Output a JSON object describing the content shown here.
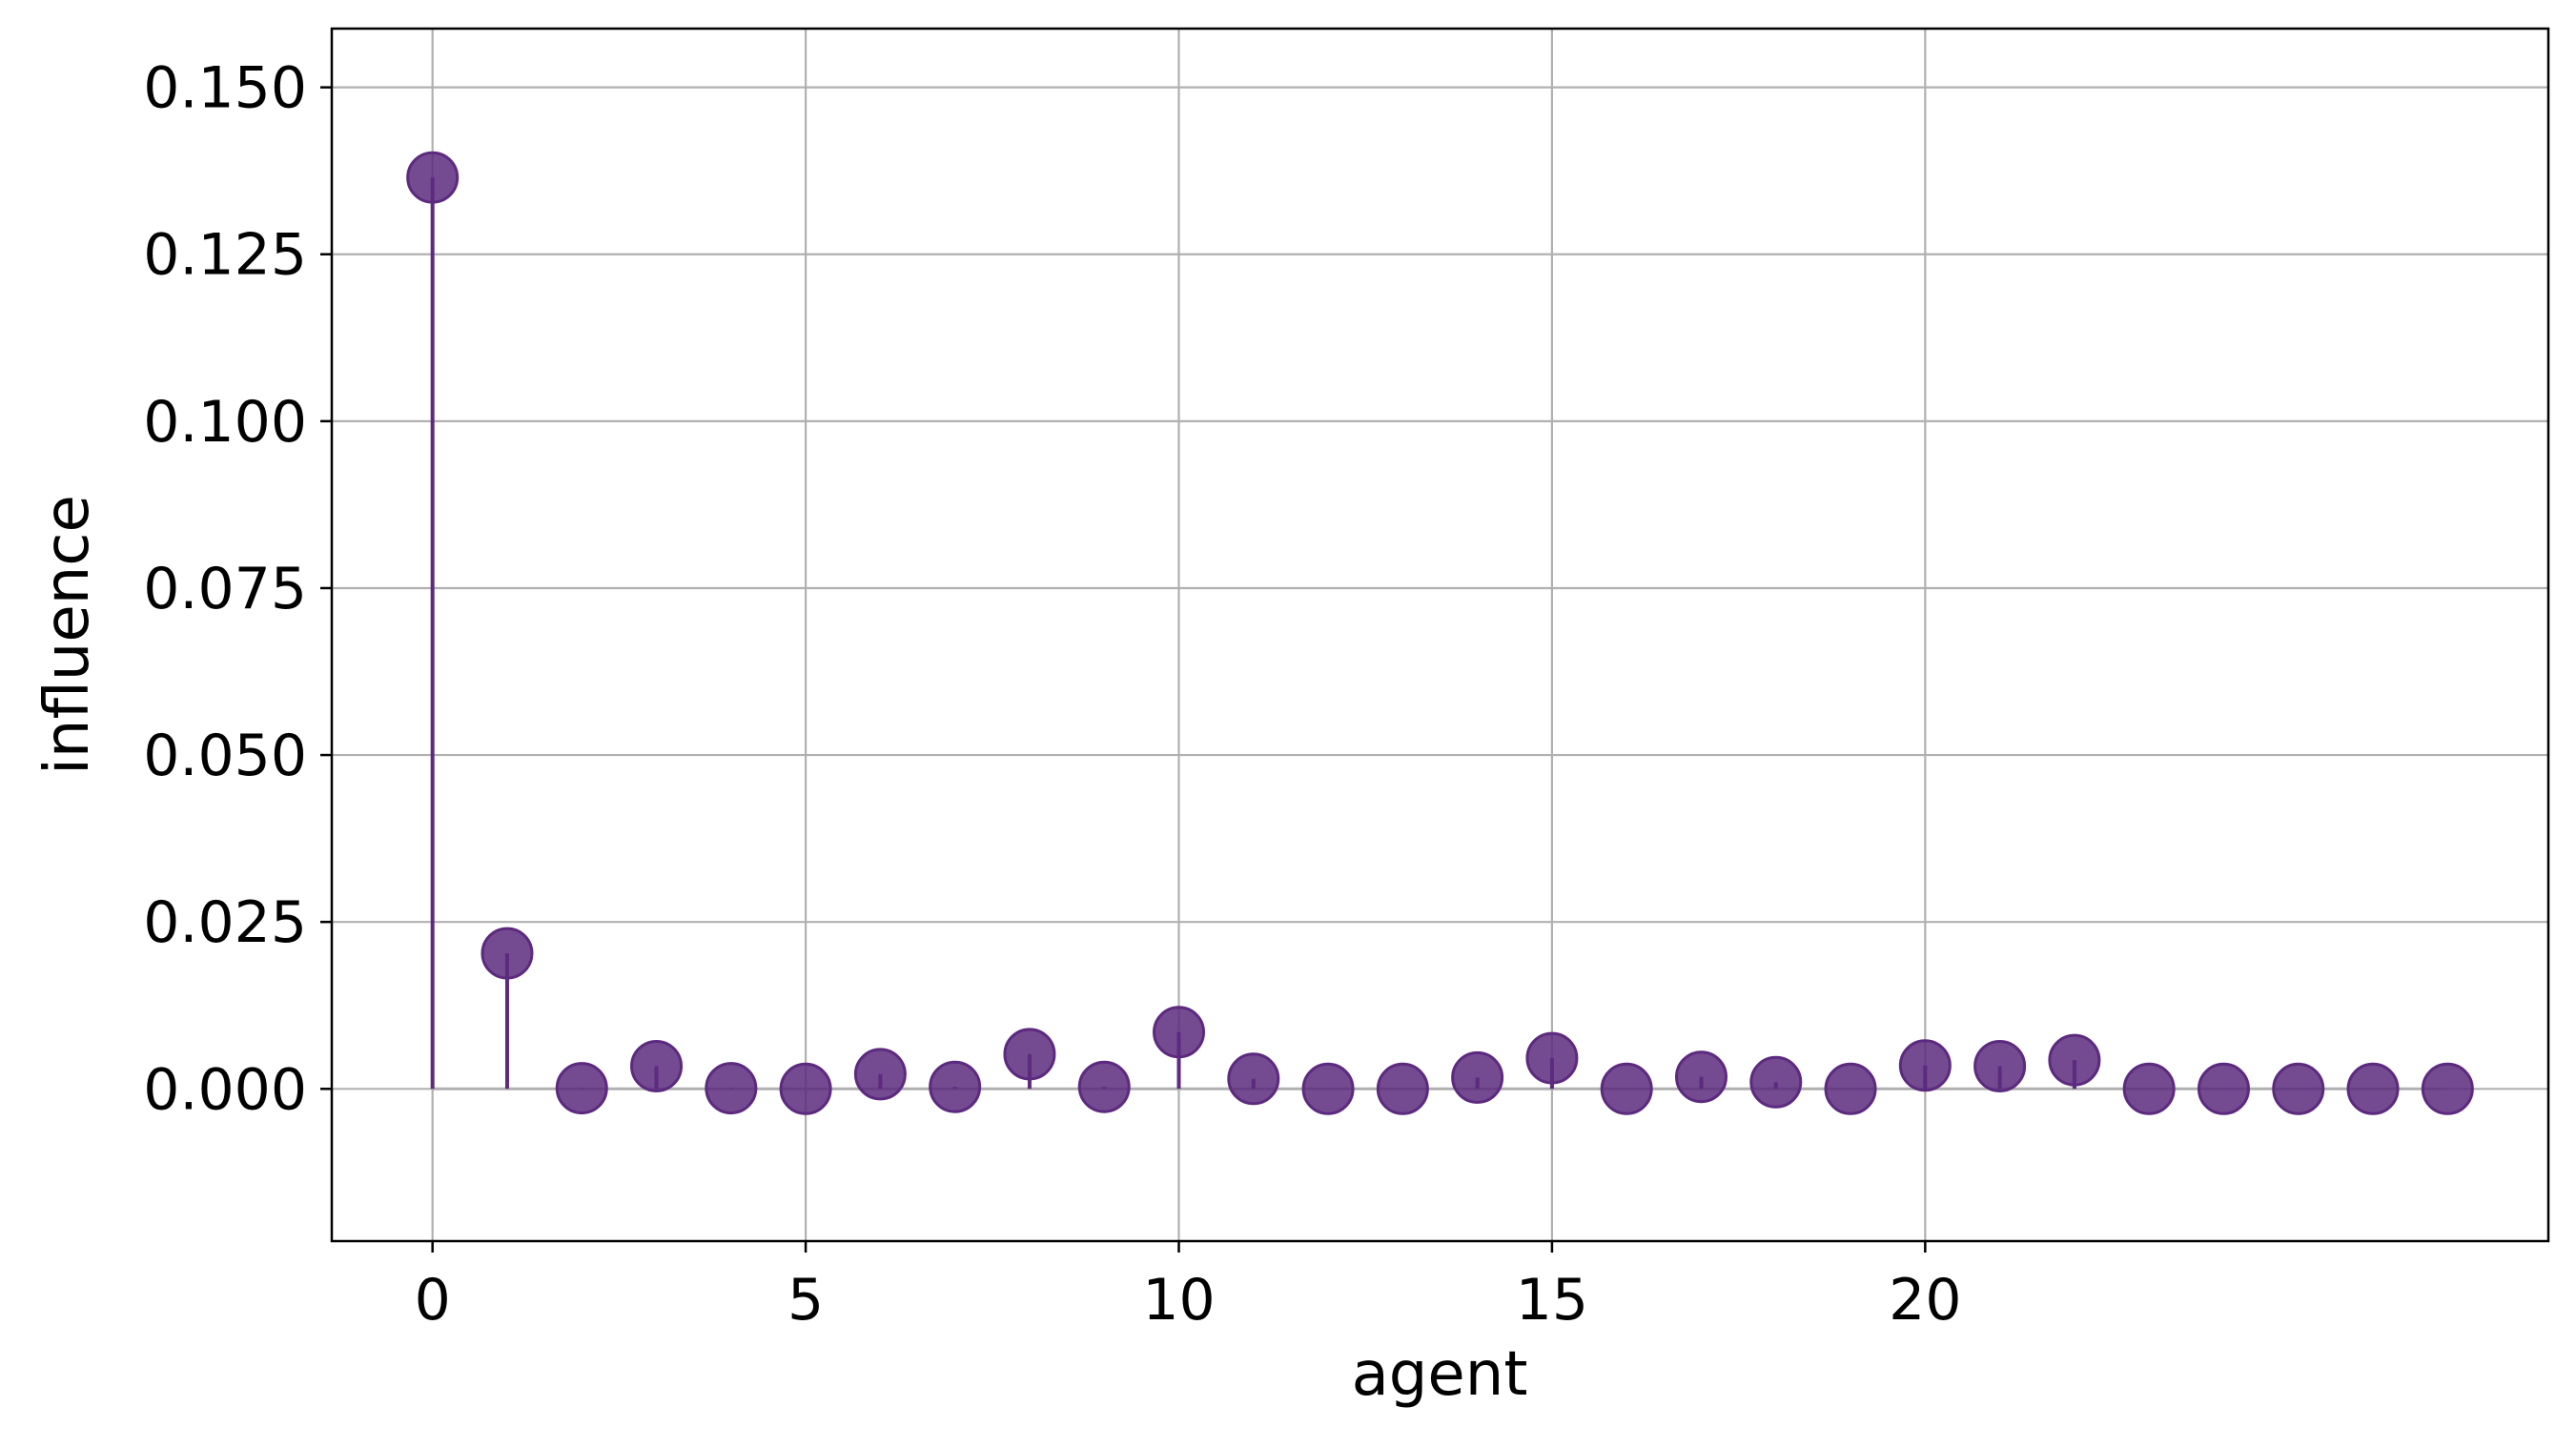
{
  "chart_data": {
    "type": "stem",
    "title": "",
    "xlabel": "agent",
    "ylabel": "influence",
    "xlim": [
      -1.35,
      28.35
    ],
    "ylim": [
      -0.0228,
      0.1588
    ],
    "xticks": [
      0,
      5,
      10,
      15,
      20
    ],
    "xtick_labels": [
      "0",
      "5",
      "10",
      "15",
      "20"
    ],
    "yticks": [
      0.0,
      0.025,
      0.05,
      0.075,
      0.1,
      0.125,
      0.15
    ],
    "ytick_labels": [
      "0.000",
      "0.025",
      "0.050",
      "0.075",
      "0.100",
      "0.125",
      "0.150"
    ],
    "grid": true,
    "baseline": 0,
    "marker_color": "#5c2a7e",
    "stem_color": "#5c2a7e",
    "grid_color": "#b0b0b0",
    "x": [
      0,
      1,
      2,
      3,
      4,
      5,
      6,
      7,
      8,
      9,
      10,
      11,
      12,
      13,
      14,
      15,
      16,
      17,
      18,
      19,
      20,
      21,
      22,
      23,
      24,
      25,
      26,
      27
    ],
    "y": [
      0.1365,
      0.0203,
      0.0001,
      0.0034,
      0.0001,
      0.0,
      0.0022,
      0.0003,
      0.0052,
      0.0003,
      0.0085,
      0.0015,
      0.0,
      0.0,
      0.0017,
      0.0046,
      0.0,
      0.0018,
      0.001,
      0.0,
      0.0035,
      0.0034,
      0.0043,
      0.0,
      0.0,
      0.0,
      0.0,
      0.0
    ]
  }
}
